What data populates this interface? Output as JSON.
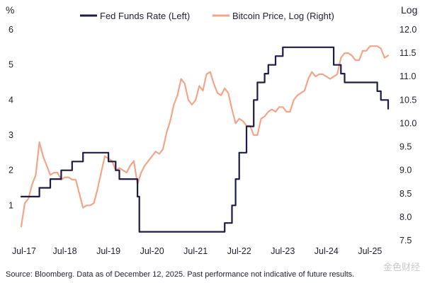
{
  "chart_data": {
    "type": "line",
    "left_axis": {
      "unit_label": "%",
      "ylim": [
        0,
        6
      ],
      "ticks": [
        0,
        1,
        2,
        3,
        4,
        5,
        6
      ],
      "tick_labels": [
        "",
        "1",
        "2",
        "3",
        "4",
        "5",
        "6"
      ]
    },
    "right_axis": {
      "unit_label": "Log",
      "ylim": [
        7.5,
        12.0
      ],
      "ticks": [
        7.5,
        8.0,
        8.5,
        9.0,
        9.5,
        10.0,
        10.5,
        11.0,
        11.5,
        12.0
      ],
      "tick_labels": [
        "7.5",
        "8.0",
        "8.5",
        "9.0",
        "9.5",
        "10.0",
        "10.5",
        "11.0",
        "11.5",
        "12.0"
      ]
    },
    "x_axis": {
      "range": [
        "2017-07",
        "2025-12"
      ],
      "ticks": [
        "2017-07",
        "2018-07",
        "2019-07",
        "2020-07",
        "2021-07",
        "2022-07",
        "2023-07",
        "2024-07",
        "2025-07"
      ],
      "tick_labels": [
        "Jul-17",
        "Jul-18",
        "Jul-19",
        "Jul-20",
        "Jul-21",
        "Jul-22",
        "Jul-23",
        "Jul-24",
        "Jul-25"
      ]
    },
    "legend_position": "top",
    "series": [
      {
        "name": "Fed Funds Rate (Left)",
        "axis": "left",
        "color": "#1c1c44",
        "style": "step",
        "x": [
          "2017-07",
          "2017-12",
          "2018-03",
          "2018-06",
          "2018-09",
          "2018-12",
          "2019-07",
          "2019-09",
          "2019-10",
          "2020-03",
          "2020-03-16",
          "2022-03",
          "2022-05",
          "2022-06",
          "2022-07",
          "2022-09",
          "2022-11",
          "2022-12",
          "2023-02",
          "2023-03",
          "2023-05",
          "2023-07",
          "2024-09",
          "2024-11",
          "2024-12",
          "2025-09",
          "2025-10",
          "2025-12"
        ],
        "values": [
          1.25,
          1.5,
          1.75,
          2.0,
          2.25,
          2.5,
          2.25,
          2.0,
          1.75,
          1.25,
          0.25,
          0.5,
          1.0,
          1.75,
          2.5,
          3.25,
          4.0,
          4.5,
          4.75,
          5.0,
          5.25,
          5.5,
          5.0,
          4.75,
          4.5,
          4.25,
          4.0,
          3.75
        ]
      },
      {
        "name": "Bitcoin Price, Log (Right)",
        "axis": "right",
        "color": "#f3a58a",
        "style": "line",
        "x": [
          "2017-07",
          "2017-08",
          "2017-09",
          "2017-10",
          "2017-11",
          "2017-12",
          "2018-01",
          "2018-02",
          "2018-03",
          "2018-04",
          "2018-05",
          "2018-06",
          "2018-07",
          "2018-08",
          "2018-09",
          "2018-10",
          "2018-11",
          "2018-12",
          "2019-01",
          "2019-02",
          "2019-03",
          "2019-04",
          "2019-05",
          "2019-06",
          "2019-07",
          "2019-08",
          "2019-09",
          "2019-10",
          "2019-11",
          "2019-12",
          "2020-01",
          "2020-02",
          "2020-03",
          "2020-04",
          "2020-05",
          "2020-06",
          "2020-07",
          "2020-08",
          "2020-09",
          "2020-10",
          "2020-11",
          "2020-12",
          "2021-01",
          "2021-02",
          "2021-03",
          "2021-04",
          "2021-05",
          "2021-06",
          "2021-07",
          "2021-08",
          "2021-09",
          "2021-10",
          "2021-11",
          "2021-12",
          "2022-01",
          "2022-02",
          "2022-03",
          "2022-04",
          "2022-05",
          "2022-06",
          "2022-07",
          "2022-08",
          "2022-09",
          "2022-10",
          "2022-11",
          "2022-12",
          "2023-01",
          "2023-02",
          "2023-03",
          "2023-04",
          "2023-05",
          "2023-06",
          "2023-07",
          "2023-08",
          "2023-09",
          "2023-10",
          "2023-11",
          "2023-12",
          "2024-01",
          "2024-02",
          "2024-03",
          "2024-04",
          "2024-05",
          "2024-06",
          "2024-07",
          "2024-08",
          "2024-09",
          "2024-10",
          "2024-11",
          "2024-12",
          "2025-01",
          "2025-02",
          "2025-03",
          "2025-04",
          "2025-05",
          "2025-06",
          "2025-07",
          "2025-08",
          "2025-09",
          "2025-10",
          "2025-11",
          "2025-12"
        ],
        "values": [
          7.8,
          8.3,
          8.4,
          8.7,
          8.9,
          9.6,
          9.3,
          9.1,
          8.9,
          8.95,
          8.95,
          8.8,
          8.85,
          8.85,
          8.8,
          8.8,
          8.5,
          8.2,
          8.25,
          8.25,
          8.3,
          8.6,
          8.95,
          9.3,
          9.25,
          9.2,
          9.0,
          9.05,
          9.0,
          8.95,
          9.1,
          9.2,
          8.7,
          8.95,
          9.1,
          9.2,
          9.3,
          9.4,
          9.35,
          9.45,
          9.8,
          10.05,
          10.4,
          10.6,
          10.95,
          10.85,
          10.5,
          10.4,
          10.5,
          10.8,
          10.7,
          11.05,
          11.1,
          10.85,
          10.65,
          10.6,
          10.75,
          10.65,
          10.3,
          10.0,
          10.1,
          10.05,
          9.95,
          9.95,
          9.75,
          9.75,
          10.1,
          10.15,
          10.25,
          10.3,
          10.25,
          10.35,
          10.35,
          10.25,
          10.25,
          10.5,
          10.6,
          10.65,
          10.7,
          10.95,
          11.1,
          11.0,
          11.05,
          11.05,
          11.0,
          10.95,
          11.0,
          11.05,
          11.4,
          11.5,
          11.5,
          11.45,
          11.35,
          11.35,
          11.55,
          11.55,
          11.65,
          11.65,
          11.65,
          11.6,
          11.4,
          11.45
        ]
      }
    ],
    "source_note": "Source: Bloomberg. Data as of December 12, 2025. Past performance not indicative of future results.",
    "watermark": "金色财经"
  }
}
